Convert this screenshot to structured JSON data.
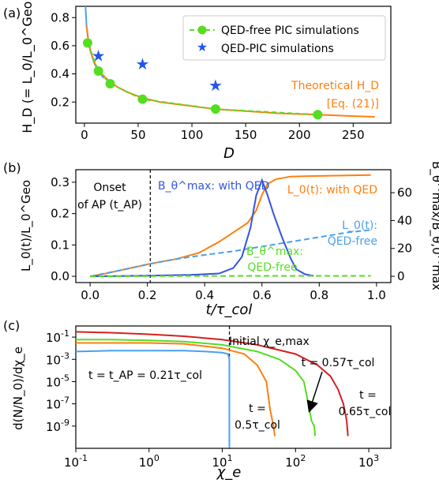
{
  "chart_data": [
    {
      "panel_label": "(a)",
      "type": "scatter",
      "xlabel": "D",
      "ylabel": "H_D (= L_0/L_0^Geo)",
      "xlim": [
        -8,
        285
      ],
      "ylim": [
        0.05,
        0.88
      ],
      "x_ticks": [
        0,
        50,
        100,
        150,
        200,
        250
      ],
      "y_ticks": [
        0.2,
        0.4,
        0.6,
        0.8
      ],
      "legend_position": "top-right",
      "annotation_line1": "Theoretical H_D",
      "annotation_line2": "[Eq. (21)]",
      "series": [
        {
          "name": "QED-free PIC simulations",
          "color": "#55dd22",
          "style": "dashed-line-with-circles",
          "x": [
            3,
            13,
            24,
            54,
            122,
            217
          ],
          "y": [
            0.62,
            0.42,
            0.33,
            0.22,
            0.15,
            0.11
          ]
        },
        {
          "name": "QED-PIC simulations",
          "color": "#2255ee",
          "style": "stars",
          "x": [
            13,
            54,
            122
          ],
          "y": [
            0.53,
            0.47,
            0.32
          ]
        },
        {
          "name": "Theoretical",
          "color": "#ff7f0e",
          "style": "solid-line",
          "x": [
            2,
            4,
            6,
            10,
            15,
            20,
            30,
            40,
            54,
            70,
            90,
            122,
            150,
            180,
            217,
            250,
            270
          ],
          "y": [
            0.74,
            0.62,
            0.55,
            0.47,
            0.41,
            0.37,
            0.31,
            0.27,
            0.23,
            0.2,
            0.18,
            0.15,
            0.135,
            0.12,
            0.11,
            0.1,
            0.095
          ]
        },
        {
          "name": "Fit",
          "color": "#4aa0ee",
          "style": "solid-line",
          "x": [
            1,
            2,
            4,
            6,
            9,
            12,
            15,
            18
          ],
          "y": [
            0.88,
            0.74,
            0.62,
            0.55,
            0.48,
            0.43,
            0.4,
            0.37
          ]
        }
      ]
    },
    {
      "panel_label": "(b)",
      "type": "line",
      "xlabel": "t/τ_col",
      "ylabel_left": "L_0(t)/L_0^Geo",
      "ylabel_right": "B_θ^max/B_θ,0^max",
      "xlim": [
        -0.05,
        1.05
      ],
      "ylim_left": [
        -0.02,
        0.34
      ],
      "ylim_right": [
        -4.5,
        76.5
      ],
      "x_ticks": [
        0.0,
        0.2,
        0.4,
        0.6,
        0.8,
        1.0
      ],
      "y_ticks_left": [
        0.0,
        0.1,
        0.2,
        0.3
      ],
      "y_ticks_right": [
        0,
        20,
        40,
        60
      ],
      "vline_x": 0.21,
      "labels": {
        "onset_line1": "Onset",
        "onset_line2": "of AP (t_AP)",
        "b_qed": "B_θ^max: with QED",
        "l_qed": "L_0(t): with QED",
        "l_free_line1": "L_0(t):",
        "l_free_line2": "QED-free",
        "b_free_line1": "B_θ^max:",
        "b_free_line2": "QED-free"
      },
      "series": [
        {
          "name": "L_0(t): with QED",
          "color": "#ff7f0e",
          "axis": "left",
          "dash": false,
          "x": [
            0.0,
            0.05,
            0.1,
            0.15,
            0.21,
            0.3,
            0.38,
            0.45,
            0.5,
            0.55,
            0.58,
            0.6,
            0.62,
            0.65,
            0.7,
            0.8,
            0.9,
            0.98
          ],
          "y": [
            0.0,
            0.008,
            0.018,
            0.028,
            0.04,
            0.055,
            0.075,
            0.11,
            0.14,
            0.17,
            0.21,
            0.26,
            0.295,
            0.31,
            0.318,
            0.32,
            0.322,
            0.323
          ]
        },
        {
          "name": "L_0(t): QED-free",
          "color": "#4aa0ee",
          "axis": "left",
          "dash": true,
          "x": [
            0.0,
            0.1,
            0.21,
            0.3,
            0.4,
            0.5,
            0.6,
            0.7,
            0.8,
            0.9,
            0.98
          ],
          "y": [
            0.0,
            0.018,
            0.04,
            0.055,
            0.068,
            0.08,
            0.095,
            0.11,
            0.125,
            0.14,
            0.148
          ]
        },
        {
          "name": "B_θ^max: with QED",
          "color": "#3355dd",
          "axis": "right",
          "dash": false,
          "x": [
            0.0,
            0.2,
            0.35,
            0.45,
            0.5,
            0.53,
            0.56,
            0.58,
            0.6,
            0.62,
            0.64,
            0.67,
            0.7,
            0.72,
            0.75,
            0.78
          ],
          "y": [
            0.0,
            0.5,
            1.0,
            2.0,
            6.0,
            14.0,
            35.0,
            58.0,
            69.0,
            58.0,
            45.0,
            28.0,
            13.0,
            5.0,
            1.5,
            0.3
          ]
        },
        {
          "name": "B_θ^max: QED-free",
          "color": "#55dd22",
          "axis": "right",
          "dash": true,
          "x": [
            0.0,
            0.3,
            0.6,
            0.98
          ],
          "y": [
            0.0,
            0.2,
            0.3,
            0.3
          ]
        }
      ]
    },
    {
      "panel_label": "(c)",
      "type": "line",
      "scale": "log-log",
      "xlabel": "χ_e",
      "ylabel": "d(N/N_0)/dχ_e",
      "xlim": [
        0.1,
        2000
      ],
      "ylim_log10": [
        -11,
        0
      ],
      "x_ticks": [
        0.1,
        1,
        10,
        100,
        1000
      ],
      "x_tick_labels": [
        "10^-1",
        "10^0",
        "10^1",
        "10^2",
        "10^3"
      ],
      "y_ticks": [
        0.1,
        0.001,
        1e-05,
        1e-07,
        1e-09
      ],
      "y_tick_labels": [
        "10^-1",
        "10^-3",
        "10^-5",
        "10^-7",
        "10^-9"
      ],
      "vline_x": 12.5,
      "labels": {
        "initial_chi": "Initial χ_e,max",
        "t_ap": "t = t_AP = 0.21τ_col",
        "t_05_line1": "t =",
        "t_05_line2": "0.5τ_col",
        "t_057": "t = 0.57τ_col",
        "t_065_line1": "t =",
        "t_065_line2": "0.65τ_col"
      },
      "series": [
        {
          "name": "t = 0.21τ_col",
          "color": "#4aa0ee",
          "x": [
            0.1,
            0.3,
            1,
            3,
            6,
            10,
            12,
            12.5,
            12.5
          ],
          "y": [
            0.005,
            0.006,
            0.006,
            0.006,
            0.005,
            0.004,
            0.003,
            0.001,
            1.25e-11
          ]
        },
        {
          "name": "t = 0.5τ_col",
          "color": "#ff7f0e",
          "x": [
            0.1,
            0.3,
            1,
            3,
            10,
            20,
            30,
            40,
            45,
            50,
            52
          ],
          "y": [
            0.03,
            0.03,
            0.03,
            0.025,
            0.01,
            0.003,
            0.0003,
            1e-05,
            3e-08,
            1e-09,
            1.25e-10
          ]
        },
        {
          "name": "t = 0.57τ_col",
          "color": "#55dd22",
          "x": [
            0.1,
            0.3,
            1,
            3,
            10,
            30,
            60,
            100,
            130,
            150,
            165,
            180,
            185
          ],
          "y": [
            0.06,
            0.06,
            0.05,
            0.04,
            0.02,
            0.005,
            0.001,
            0.0001,
            1e-05,
            1e-07,
            3e-09,
            1e-09,
            1.25e-10
          ]
        },
        {
          "name": "t = 0.65τ_col",
          "color": "#d62020",
          "x": [
            0.1,
            0.3,
            1,
            3,
            10,
            30,
            100,
            200,
            300,
            380,
            450,
            500,
            520
          ],
          "y": [
            0.3,
            0.25,
            0.18,
            0.12,
            0.06,
            0.02,
            0.003,
            0.0003,
            3e-05,
            2e-06,
            1e-07,
            3e-09,
            1.25e-10
          ]
        }
      ]
    }
  ]
}
